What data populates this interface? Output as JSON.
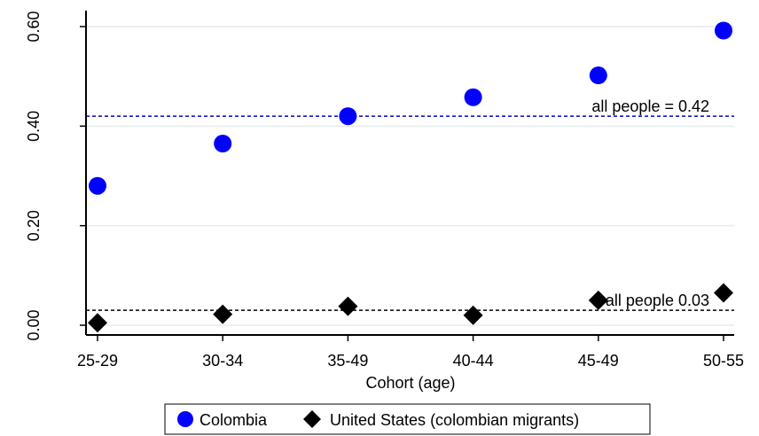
{
  "chart_data": {
    "type": "scatter",
    "title": "",
    "xlabel": "Cohort (age)",
    "ylabel": "",
    "categories": [
      "25-29",
      "30-34",
      "35-49",
      "40-44",
      "45-49",
      "50-55"
    ],
    "ylim": [
      0,
      0.6
    ],
    "y_ticks": [
      "0.00",
      "0.20",
      "0.40",
      "0.60"
    ],
    "grid": "horizontal",
    "series": [
      {
        "name": "Colombia",
        "marker": "circle",
        "color": "#0000ff",
        "values": [
          0.28,
          0.365,
          0.42,
          0.458,
          0.502,
          0.592
        ]
      },
      {
        "name": "United States (colombian migrants)",
        "marker": "diamond",
        "color": "#000000",
        "values": [
          0.005,
          0.022,
          0.038,
          0.02,
          0.05,
          0.065
        ]
      }
    ],
    "reference_lines": [
      {
        "value": 0.42,
        "label": "all people = 0.42",
        "color": "#0000cc",
        "style": "dashed"
      },
      {
        "value": 0.03,
        "label": "all people 0.03",
        "color": "#000000",
        "style": "dashed"
      }
    ],
    "legend_position": "bottom"
  }
}
